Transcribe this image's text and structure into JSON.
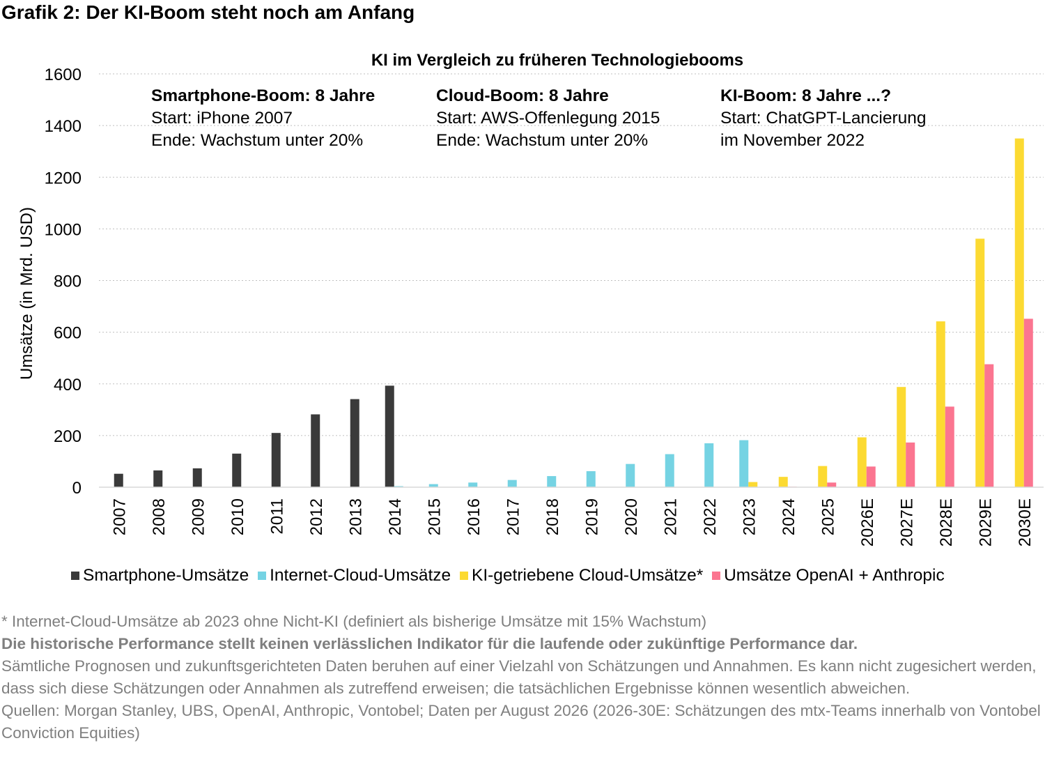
{
  "title": "Grafik 2: Der KI-Boom steht noch am Anfang",
  "chart_data": {
    "type": "bar",
    "title": "KI im Vergleich zu früheren Technologiebooms",
    "ylabel": "Umsätze (in Mrd. USD)",
    "xlabel": "",
    "ylim": [
      0,
      1600
    ],
    "yticks": [
      0,
      200,
      400,
      600,
      800,
      1000,
      1200,
      1400,
      1600
    ],
    "grid": "horizontal dashed",
    "legend_position": "bottom",
    "categories": [
      "2007",
      "2008",
      "2009",
      "2010",
      "2011",
      "2012",
      "2013",
      "2014",
      "2015",
      "2016",
      "2017",
      "2018",
      "2019",
      "2020",
      "2021",
      "2022",
      "2023",
      "2024",
      "2025",
      "2026E",
      "2027E",
      "2028E",
      "2029E",
      "2030E"
    ],
    "series": [
      {
        "name": "Smartphone-Umsätze",
        "color": "#3a3a3a",
        "values": [
          52,
          65,
          73,
          130,
          210,
          282,
          341,
          393,
          0,
          0,
          0,
          0,
          0,
          0,
          0,
          0,
          0,
          0,
          0,
          0,
          0,
          0,
          0,
          0
        ]
      },
      {
        "name": "Internet-Cloud-Umsätze",
        "color": "#75d3e3",
        "values": [
          0,
          0,
          0,
          0,
          0,
          0,
          0,
          4,
          12,
          18,
          28,
          43,
          62,
          90,
          128,
          170,
          182,
          0,
          0,
          0,
          0,
          0,
          0,
          0
        ]
      },
      {
        "name": "KI-getriebene Cloud-Umsätze*",
        "color": "#fcda32",
        "values": [
          0,
          0,
          0,
          0,
          0,
          0,
          0,
          0,
          0,
          0,
          0,
          0,
          0,
          0,
          0,
          0,
          20,
          40,
          82,
          193,
          388,
          642,
          962,
          1350
        ]
      },
      {
        "name": "Umsätze OpenAI + Anthropic",
        "color": "#fb7590",
        "values": [
          0,
          0,
          0,
          0,
          0,
          0,
          0,
          0,
          0,
          0,
          0,
          0,
          0,
          0,
          0,
          0,
          0,
          2,
          18,
          80,
          173,
          312,
          476,
          652
        ]
      }
    ],
    "annotations": [
      {
        "heading": "Smartphone-Boom: 8 Jahre",
        "line1": "Start: iPhone 2007",
        "line2": "Ende: Wachstum unter 20%"
      },
      {
        "heading": "Cloud-Boom: 8 Jahre",
        "line1": "Start: AWS-Offenlegung 2015",
        "line2": "Ende: Wachstum unter 20%"
      },
      {
        "heading": "KI-Boom: 8 Jahre ...?",
        "line1": "Start: ChatGPT-Lancierung",
        "line2": "im November 2022"
      }
    ]
  },
  "notes": {
    "footnote": "* Internet-Cloud-Umsätze ab 2023 ohne Nicht-KI (definiert als bisherige Umsätze mit 15% Wachstum)",
    "disclaimer": "Die historische Performance stellt keinen verlässlichen Indikator für die laufende oder zukünftige Performance dar.",
    "forecast_note": "Sämtliche Prognosen und zukunftsgerichteten Daten beruhen auf einer Vielzahl von Schätzungen und Annahmen. Es kann nicht zugesichert werden, dass sich diese Schätzungen oder Annahmen als zutreffend erweisen; die tatsächlichen Ergebnisse können wesentlich abweichen.",
    "sources": "Quellen: Morgan Stanley, UBS, OpenAI, Anthropic, Vontobel; Daten per August 2026 (2026-30E: Schätzungen des mtx-Teams innerhalb von Vontobel Conviction Equities)"
  }
}
